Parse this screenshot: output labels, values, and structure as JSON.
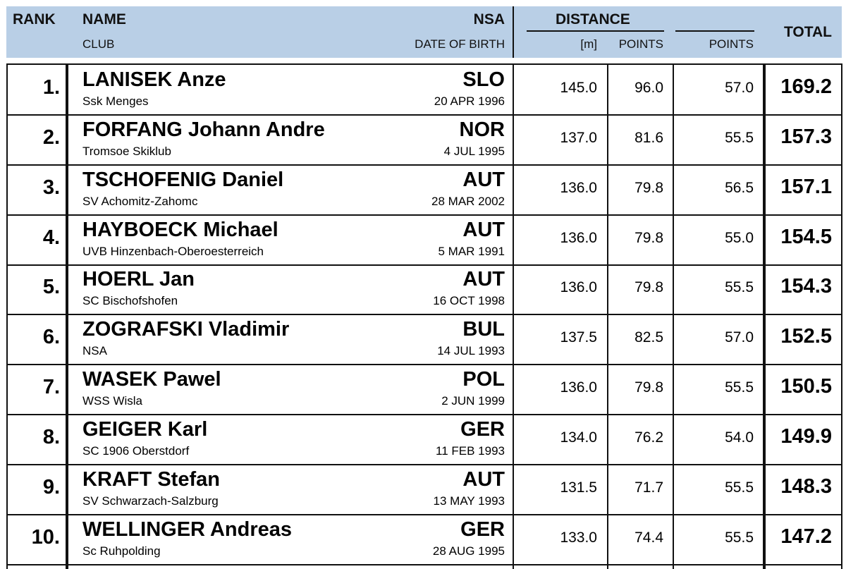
{
  "header": {
    "rank": "RANK",
    "name": "NAME",
    "club": "CLUB",
    "nsa": "NSA",
    "dob": "DATE OF BIRTH",
    "distance": "DISTANCE",
    "m": "[m]",
    "dist_points": "POINTS",
    "points": "POINTS",
    "total": "TOTAL"
  },
  "rows": [
    {
      "rank": "1.",
      "name": "LANISEK Anze",
      "club": "Ssk Menges",
      "nsa": "SLO",
      "dob": "20 APR 1996",
      "distance": "145.0",
      "dist_points": "96.0",
      "points": "57.0",
      "total": "169.2"
    },
    {
      "rank": "2.",
      "name": "FORFANG Johann Andre",
      "club": "Tromsoe Skiklub",
      "nsa": "NOR",
      "dob": "4 JUL 1995",
      "distance": "137.0",
      "dist_points": "81.6",
      "points": "55.5",
      "total": "157.3"
    },
    {
      "rank": "3.",
      "name": "TSCHOFENIG Daniel",
      "club": "SV Achomitz-Zahomc",
      "nsa": "AUT",
      "dob": "28 MAR 2002",
      "distance": "136.0",
      "dist_points": "79.8",
      "points": "56.5",
      "total": "157.1"
    },
    {
      "rank": "4.",
      "name": "HAYBOECK Michael",
      "club": "UVB Hinzenbach-Oberoesterreich",
      "nsa": "AUT",
      "dob": "5 MAR 1991",
      "distance": "136.0",
      "dist_points": "79.8",
      "points": "55.0",
      "total": "154.5"
    },
    {
      "rank": "5.",
      "name": "HOERL Jan",
      "club": "SC Bischofshofen",
      "nsa": "AUT",
      "dob": "16 OCT 1998",
      "distance": "136.0",
      "dist_points": "79.8",
      "points": "55.5",
      "total": "154.3"
    },
    {
      "rank": "6.",
      "name": "ZOGRAFSKI Vladimir",
      "club": "NSA",
      "nsa": "BUL",
      "dob": "14 JUL 1993",
      "distance": "137.5",
      "dist_points": "82.5",
      "points": "57.0",
      "total": "152.5"
    },
    {
      "rank": "7.",
      "name": "WASEK Pawel",
      "club": "WSS Wisla",
      "nsa": "POL",
      "dob": "2 JUN 1999",
      "distance": "136.0",
      "dist_points": "79.8",
      "points": "55.5",
      "total": "150.5"
    },
    {
      "rank": "8.",
      "name": "GEIGER Karl",
      "club": "SC 1906 Oberstdorf",
      "nsa": "GER",
      "dob": "11 FEB 1993",
      "distance": "134.0",
      "dist_points": "76.2",
      "points": "54.0",
      "total": "149.9"
    },
    {
      "rank": "9.",
      "name": "KRAFT Stefan",
      "club": "SV Schwarzach-Salzburg",
      "nsa": "AUT",
      "dob": "13 MAY 1993",
      "distance": "131.5",
      "dist_points": "71.7",
      "points": "55.5",
      "total": "148.3"
    },
    {
      "rank": "10.",
      "name": "WELLINGER Andreas",
      "club": "Sc Ruhpolding",
      "nsa": "GER",
      "dob": "28 AUG 1995",
      "distance": "133.0",
      "dist_points": "74.4",
      "points": "55.5",
      "total": "147.2"
    }
  ],
  "colors": {
    "header_bg": "#b9cfe6",
    "rule": "#111111"
  }
}
